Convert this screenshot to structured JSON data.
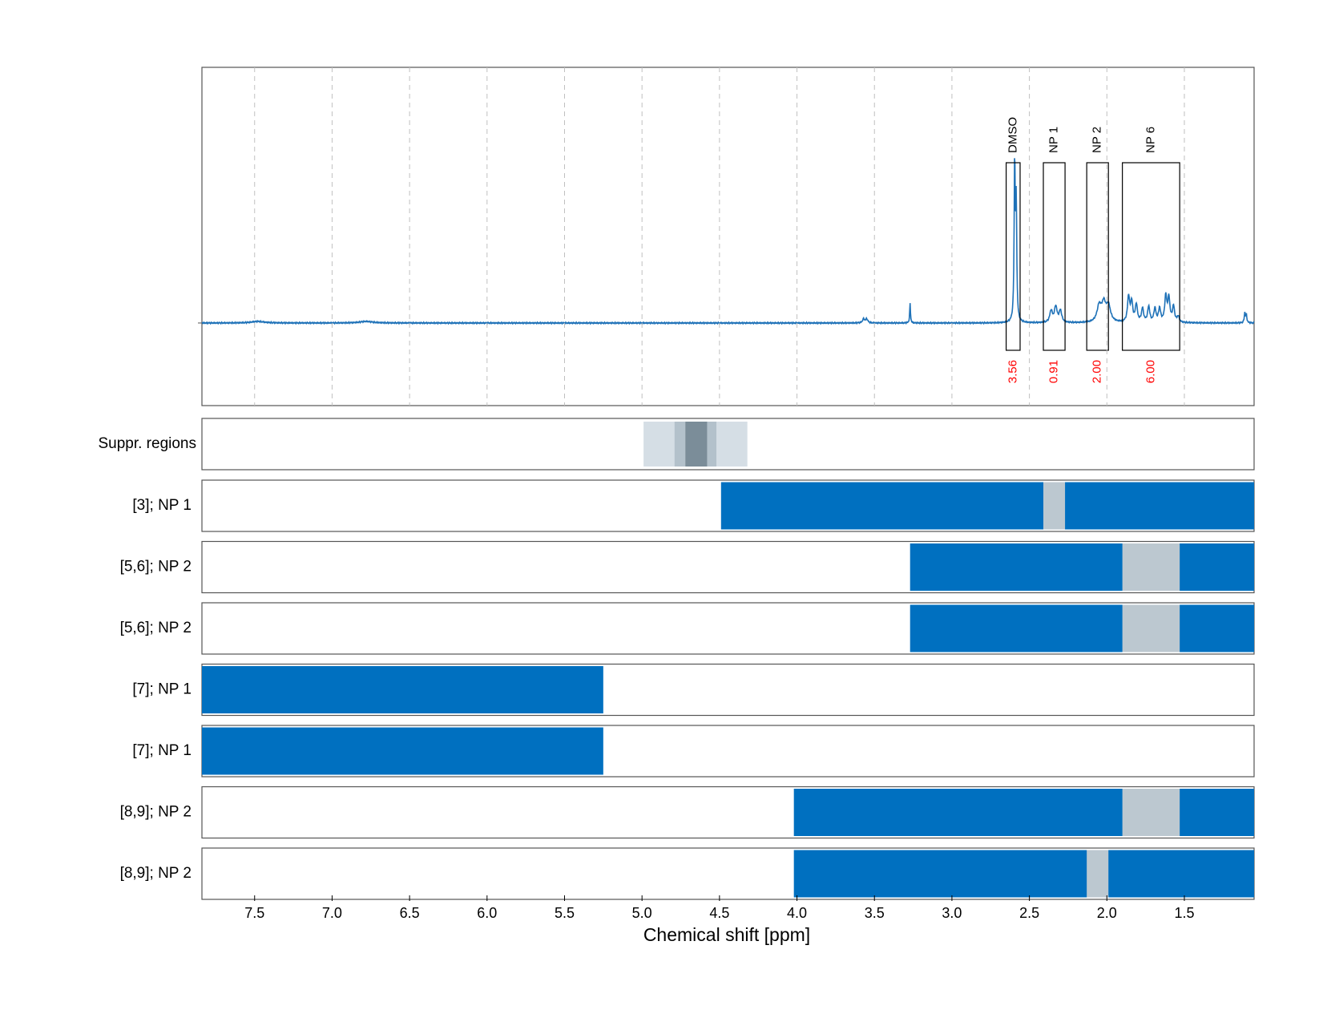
{
  "chart_data": {
    "type": "line",
    "title": "",
    "xlabel": "Chemical shift [ppm]",
    "ylabel": "",
    "x_reversed": true,
    "xlim": [
      7.84,
      1.05
    ],
    "xticks": [
      7.5,
      7.0,
      6.5,
      6.0,
      5.5,
      5.0,
      4.5,
      4.0,
      3.5,
      3.0,
      2.5,
      2.0,
      1.5
    ],
    "xtick_labels": [
      "7.5",
      "7.0",
      "6.5",
      "6.0",
      "5.5",
      "5.0",
      "4.5",
      "4.0",
      "3.5",
      "3.0",
      "2.5",
      "2.0",
      "1.5"
    ],
    "grid": "vertical dashed",
    "colors": {
      "spectrum": "#1f72b8",
      "region": "#0070c0",
      "gap": "#bcc8d0",
      "integral_value": "#ff0000",
      "supp_light": "#d5dee5",
      "supp_mid": "#b3c1cb",
      "supp_dark": "#7b8d99"
    },
    "spectrum": {
      "baseline": 0,
      "ylim": [
        -0.42,
        1.3
      ],
      "peaks": [
        {
          "center": 7.48,
          "height": 0.008,
          "width": 0.05
        },
        {
          "center": 6.78,
          "height": 0.008,
          "width": 0.05
        },
        {
          "center": 3.57,
          "height": 0.02,
          "width": 0.008
        },
        {
          "center": 3.55,
          "height": 0.02,
          "width": 0.008
        },
        {
          "center": 3.27,
          "height": 0.1,
          "width": 0.003
        },
        {
          "center": 2.595,
          "height": 0.82,
          "width": 0.004
        },
        {
          "center": 2.585,
          "height": 0.58,
          "width": 0.004
        },
        {
          "center": 2.36,
          "height": 0.06,
          "width": 0.01
        },
        {
          "center": 2.33,
          "height": 0.08,
          "width": 0.01
        },
        {
          "center": 2.3,
          "height": 0.06,
          "width": 0.01
        },
        {
          "center": 2.05,
          "height": 0.08,
          "width": 0.016
        },
        {
          "center": 2.02,
          "height": 0.09,
          "width": 0.016
        },
        {
          "center": 1.99,
          "height": 0.08,
          "width": 0.016
        },
        {
          "center": 1.86,
          "height": 0.13,
          "width": 0.008
        },
        {
          "center": 1.84,
          "height": 0.1,
          "width": 0.008
        },
        {
          "center": 1.81,
          "height": 0.09,
          "width": 0.008
        },
        {
          "center": 1.77,
          "height": 0.07,
          "width": 0.008
        },
        {
          "center": 1.73,
          "height": 0.08,
          "width": 0.008
        },
        {
          "center": 1.69,
          "height": 0.07,
          "width": 0.008
        },
        {
          "center": 1.66,
          "height": 0.07,
          "width": 0.008
        },
        {
          "center": 1.62,
          "height": 0.13,
          "width": 0.008
        },
        {
          "center": 1.6,
          "height": 0.12,
          "width": 0.008
        },
        {
          "center": 1.57,
          "height": 0.08,
          "width": 0.008
        },
        {
          "center": 1.54,
          "height": 0.03,
          "width": 0.008
        },
        {
          "center": 1.11,
          "height": 0.05,
          "width": 0.004
        },
        {
          "center": 1.1,
          "height": 0.04,
          "width": 0.004
        }
      ],
      "integrals": [
        {
          "label": "DMSO",
          "from": 2.65,
          "to": 2.56,
          "value": "3.56"
        },
        {
          "label": "NP 1",
          "from": 2.41,
          "to": 2.27,
          "value": "0.91"
        },
        {
          "label": "NP 2",
          "from": 2.13,
          "to": 1.99,
          "value": "2.00"
        },
        {
          "label": "NP 6",
          "from": 1.9,
          "to": 1.53,
          "value": "6.00"
        }
      ]
    },
    "suppressed_regions": {
      "label": "Suppr. regions",
      "bands": [
        {
          "from": 4.99,
          "to": 4.32,
          "level": "light"
        },
        {
          "from": 4.79,
          "to": 4.52,
          "level": "mid"
        },
        {
          "from": 4.72,
          "to": 4.58,
          "level": "dark"
        }
      ]
    },
    "region_rows": [
      {
        "label": "[3]; NP 1",
        "segments": [
          {
            "from": 4.49,
            "to": 1.05,
            "kind": "region"
          },
          {
            "from": 2.41,
            "to": 2.27,
            "kind": "gap"
          }
        ]
      },
      {
        "label": "[5,6]; NP 2",
        "segments": [
          {
            "from": 3.27,
            "to": 1.05,
            "kind": "region"
          },
          {
            "from": 1.9,
            "to": 1.53,
            "kind": "gap"
          }
        ]
      },
      {
        "label": "[5,6]; NP 2",
        "segments": [
          {
            "from": 3.27,
            "to": 1.05,
            "kind": "region"
          },
          {
            "from": 1.9,
            "to": 1.53,
            "kind": "gap"
          }
        ]
      },
      {
        "label": "[7]; NP 1",
        "segments": [
          {
            "from": 7.84,
            "to": 5.25,
            "kind": "region"
          }
        ]
      },
      {
        "label": "[7]; NP 1",
        "segments": [
          {
            "from": 7.84,
            "to": 5.25,
            "kind": "region"
          }
        ]
      },
      {
        "label": "[8,9]; NP 2",
        "segments": [
          {
            "from": 4.02,
            "to": 1.05,
            "kind": "region"
          },
          {
            "from": 1.9,
            "to": 1.53,
            "kind": "gap"
          }
        ]
      },
      {
        "label": "[8,9]; NP 2",
        "segments": [
          {
            "from": 4.02,
            "to": 1.05,
            "kind": "region"
          },
          {
            "from": 2.13,
            "to": 1.99,
            "kind": "gap"
          }
        ]
      }
    ]
  }
}
